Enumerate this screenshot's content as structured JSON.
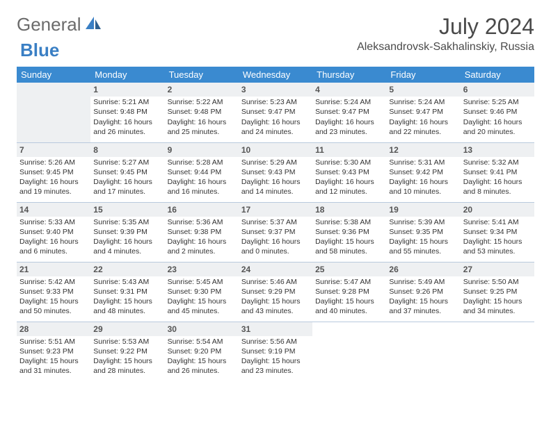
{
  "logo": {
    "text1": "General",
    "text2": "Blue"
  },
  "title": "July 2024",
  "location": "Aleksandrovsk-Sakhalinskiy, Russia",
  "colors": {
    "header_bg": "#3a8ad0",
    "header_text": "#ffffff",
    "border": "#b8c9dd",
    "shaded": "#eef0f2",
    "text": "#333333",
    "logo_gray": "#6b6b6b",
    "logo_blue": "#3a7fc4"
  },
  "daynames": [
    "Sunday",
    "Monday",
    "Tuesday",
    "Wednesday",
    "Thursday",
    "Friday",
    "Saturday"
  ],
  "weeks": [
    [
      null,
      {
        "n": "1",
        "sr": "Sunrise: 5:21 AM",
        "ss": "Sunset: 9:48 PM",
        "d1": "Daylight: 16 hours",
        "d2": "and 26 minutes."
      },
      {
        "n": "2",
        "sr": "Sunrise: 5:22 AM",
        "ss": "Sunset: 9:48 PM",
        "d1": "Daylight: 16 hours",
        "d2": "and 25 minutes."
      },
      {
        "n": "3",
        "sr": "Sunrise: 5:23 AM",
        "ss": "Sunset: 9:47 PM",
        "d1": "Daylight: 16 hours",
        "d2": "and 24 minutes."
      },
      {
        "n": "4",
        "sr": "Sunrise: 5:24 AM",
        "ss": "Sunset: 9:47 PM",
        "d1": "Daylight: 16 hours",
        "d2": "and 23 minutes."
      },
      {
        "n": "5",
        "sr": "Sunrise: 5:24 AM",
        "ss": "Sunset: 9:47 PM",
        "d1": "Daylight: 16 hours",
        "d2": "and 22 minutes."
      },
      {
        "n": "6",
        "sr": "Sunrise: 5:25 AM",
        "ss": "Sunset: 9:46 PM",
        "d1": "Daylight: 16 hours",
        "d2": "and 20 minutes."
      }
    ],
    [
      {
        "n": "7",
        "sr": "Sunrise: 5:26 AM",
        "ss": "Sunset: 9:45 PM",
        "d1": "Daylight: 16 hours",
        "d2": "and 19 minutes."
      },
      {
        "n": "8",
        "sr": "Sunrise: 5:27 AM",
        "ss": "Sunset: 9:45 PM",
        "d1": "Daylight: 16 hours",
        "d2": "and 17 minutes."
      },
      {
        "n": "9",
        "sr": "Sunrise: 5:28 AM",
        "ss": "Sunset: 9:44 PM",
        "d1": "Daylight: 16 hours",
        "d2": "and 16 minutes."
      },
      {
        "n": "10",
        "sr": "Sunrise: 5:29 AM",
        "ss": "Sunset: 9:43 PM",
        "d1": "Daylight: 16 hours",
        "d2": "and 14 minutes."
      },
      {
        "n": "11",
        "sr": "Sunrise: 5:30 AM",
        "ss": "Sunset: 9:43 PM",
        "d1": "Daylight: 16 hours",
        "d2": "and 12 minutes."
      },
      {
        "n": "12",
        "sr": "Sunrise: 5:31 AM",
        "ss": "Sunset: 9:42 PM",
        "d1": "Daylight: 16 hours",
        "d2": "and 10 minutes."
      },
      {
        "n": "13",
        "sr": "Sunrise: 5:32 AM",
        "ss": "Sunset: 9:41 PM",
        "d1": "Daylight: 16 hours",
        "d2": "and 8 minutes."
      }
    ],
    [
      {
        "n": "14",
        "sr": "Sunrise: 5:33 AM",
        "ss": "Sunset: 9:40 PM",
        "d1": "Daylight: 16 hours",
        "d2": "and 6 minutes."
      },
      {
        "n": "15",
        "sr": "Sunrise: 5:35 AM",
        "ss": "Sunset: 9:39 PM",
        "d1": "Daylight: 16 hours",
        "d2": "and 4 minutes."
      },
      {
        "n": "16",
        "sr": "Sunrise: 5:36 AM",
        "ss": "Sunset: 9:38 PM",
        "d1": "Daylight: 16 hours",
        "d2": "and 2 minutes."
      },
      {
        "n": "17",
        "sr": "Sunrise: 5:37 AM",
        "ss": "Sunset: 9:37 PM",
        "d1": "Daylight: 16 hours",
        "d2": "and 0 minutes."
      },
      {
        "n": "18",
        "sr": "Sunrise: 5:38 AM",
        "ss": "Sunset: 9:36 PM",
        "d1": "Daylight: 15 hours",
        "d2": "and 58 minutes."
      },
      {
        "n": "19",
        "sr": "Sunrise: 5:39 AM",
        "ss": "Sunset: 9:35 PM",
        "d1": "Daylight: 15 hours",
        "d2": "and 55 minutes."
      },
      {
        "n": "20",
        "sr": "Sunrise: 5:41 AM",
        "ss": "Sunset: 9:34 PM",
        "d1": "Daylight: 15 hours",
        "d2": "and 53 minutes."
      }
    ],
    [
      {
        "n": "21",
        "sr": "Sunrise: 5:42 AM",
        "ss": "Sunset: 9:33 PM",
        "d1": "Daylight: 15 hours",
        "d2": "and 50 minutes."
      },
      {
        "n": "22",
        "sr": "Sunrise: 5:43 AM",
        "ss": "Sunset: 9:31 PM",
        "d1": "Daylight: 15 hours",
        "d2": "and 48 minutes."
      },
      {
        "n": "23",
        "sr": "Sunrise: 5:45 AM",
        "ss": "Sunset: 9:30 PM",
        "d1": "Daylight: 15 hours",
        "d2": "and 45 minutes."
      },
      {
        "n": "24",
        "sr": "Sunrise: 5:46 AM",
        "ss": "Sunset: 9:29 PM",
        "d1": "Daylight: 15 hours",
        "d2": "and 43 minutes."
      },
      {
        "n": "25",
        "sr": "Sunrise: 5:47 AM",
        "ss": "Sunset: 9:28 PM",
        "d1": "Daylight: 15 hours",
        "d2": "and 40 minutes."
      },
      {
        "n": "26",
        "sr": "Sunrise: 5:49 AM",
        "ss": "Sunset: 9:26 PM",
        "d1": "Daylight: 15 hours",
        "d2": "and 37 minutes."
      },
      {
        "n": "27",
        "sr": "Sunrise: 5:50 AM",
        "ss": "Sunset: 9:25 PM",
        "d1": "Daylight: 15 hours",
        "d2": "and 34 minutes."
      }
    ],
    [
      {
        "n": "28",
        "sr": "Sunrise: 5:51 AM",
        "ss": "Sunset: 9:23 PM",
        "d1": "Daylight: 15 hours",
        "d2": "and 31 minutes."
      },
      {
        "n": "29",
        "sr": "Sunrise: 5:53 AM",
        "ss": "Sunset: 9:22 PM",
        "d1": "Daylight: 15 hours",
        "d2": "and 28 minutes."
      },
      {
        "n": "30",
        "sr": "Sunrise: 5:54 AM",
        "ss": "Sunset: 9:20 PM",
        "d1": "Daylight: 15 hours",
        "d2": "and 26 minutes."
      },
      {
        "n": "31",
        "sr": "Sunrise: 5:56 AM",
        "ss": "Sunset: 9:19 PM",
        "d1": "Daylight: 15 hours",
        "d2": "and 23 minutes."
      },
      null,
      null,
      null
    ]
  ]
}
